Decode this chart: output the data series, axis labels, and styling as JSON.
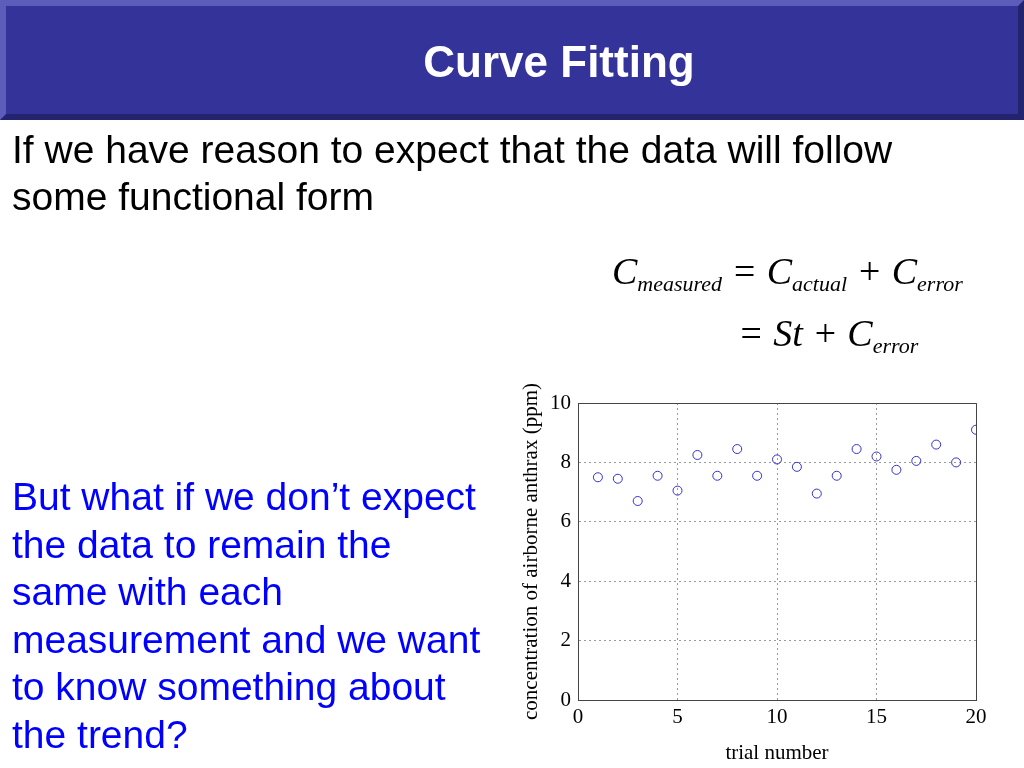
{
  "chart_data": {
    "type": "scatter",
    "title": "Curve Fitting",
    "annotations": [
      "If we have reason to expect that the data will follow some functional form",
      "C$_{measured}$ = C$_{actual}$ + C$_{error}$",
      "= St + C$_{error}$",
      "But what if we don’t expect the data to remain the same with each measurement and we want to know something about the trend?"
    ],
    "xlabel": "trial number",
    "ylabel": "concentration of airborne anthrax (ppm)",
    "x": [
      1,
      2,
      3,
      4,
      5,
      6,
      7,
      8,
      9,
      10,
      11,
      12,
      13,
      14,
      15,
      16,
      17,
      18,
      19,
      20
    ],
    "series": [
      {
        "color": "#3333cc",
        "values": [
          7.5,
          7.45,
          6.7,
          7.55,
          7.05,
          8.25,
          7.55,
          8.45,
          7.55,
          8.1,
          7.85,
          6.95,
          7.55,
          8.45,
          8.2,
          7.75,
          8.05,
          8.6,
          8.0,
          9.1
        ]
      }
    ],
    "xlim": [
      0,
      20
    ],
    "ylim": [
      0,
      10
    ],
    "xticks": [
      0,
      5,
      10,
      15,
      20
    ],
    "yticks": [
      0,
      2,
      4,
      6,
      8,
      10
    ],
    "grid": true,
    "marker": "circle"
  }
}
